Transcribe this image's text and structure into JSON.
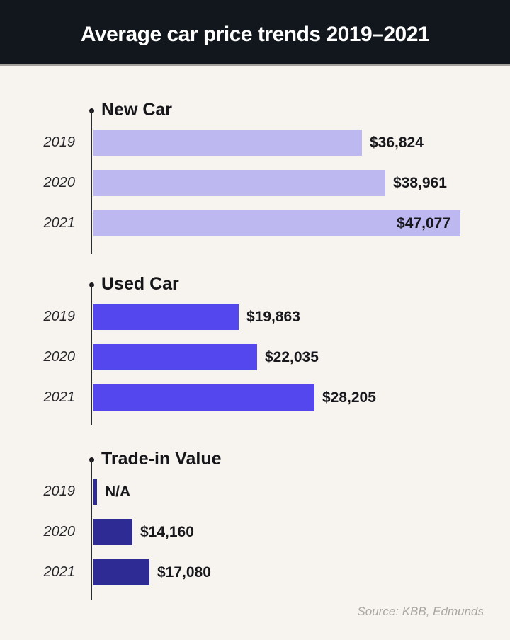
{
  "header": {
    "title": "Average car price trends 2019–2021"
  },
  "footer": {
    "source": "Source: KBB, Edmunds"
  },
  "colors": {
    "header_bg": "#12171d",
    "header_text": "#ffffff",
    "page_bg": "#f7f4ef",
    "axis": "#2b2b2e",
    "value_text": "#17171c",
    "year_text": "#26262a",
    "source_text": "#a9a7a3",
    "new_car_bar": "#bdb9f0",
    "used_car_bar": "#5547ee",
    "trade_in_bar": "#2e2b94"
  },
  "chart_data": [
    {
      "type": "bar",
      "orientation": "horizontal",
      "title": "New Car",
      "categories": [
        "2019",
        "2020",
        "2021"
      ],
      "values": [
        36824,
        38961,
        47077
      ],
      "value_labels": [
        "$36,824",
        "$38,961",
        "$47,077"
      ],
      "unit": "USD",
      "color_key": "new_car_bar",
      "legend": "none",
      "grid": "off"
    },
    {
      "type": "bar",
      "orientation": "horizontal",
      "title": "Used Car",
      "categories": [
        "2019",
        "2020",
        "2021"
      ],
      "values": [
        19863,
        22035,
        28205
      ],
      "value_labels": [
        "$19,863",
        "$22,035",
        "$28,205"
      ],
      "unit": "USD",
      "color_key": "used_car_bar",
      "legend": "none",
      "grid": "off"
    },
    {
      "type": "bar",
      "orientation": "horizontal",
      "title": "Trade-in Value",
      "categories": [
        "2019",
        "2020",
        "2021"
      ],
      "values": [
        null,
        14160,
        17080
      ],
      "value_labels": [
        "N/A",
        "$14,160",
        "$17,080"
      ],
      "unit": "USD",
      "color_key": "trade_in_bar",
      "legend": "none",
      "grid": "off"
    }
  ]
}
